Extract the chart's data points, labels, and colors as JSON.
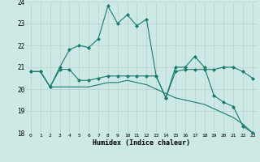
{
  "xlabel": "Humidex (Indice chaleur)",
  "x": [
    0,
    1,
    2,
    3,
    4,
    5,
    6,
    7,
    8,
    9,
    10,
    11,
    12,
    13,
    14,
    15,
    16,
    17,
    18,
    19,
    20,
    21,
    22,
    23
  ],
  "line1": [
    20.8,
    20.8,
    20.1,
    21.0,
    21.8,
    22.0,
    21.9,
    22.3,
    23.8,
    23.0,
    23.4,
    22.9,
    23.2,
    20.6,
    19.6,
    21.0,
    21.0,
    21.5,
    21.0,
    19.7,
    19.4,
    19.2,
    18.3,
    18.0
  ],
  "line2": [
    20.8,
    20.8,
    20.1,
    20.1,
    20.1,
    20.1,
    20.1,
    20.2,
    20.3,
    20.3,
    20.4,
    20.3,
    20.2,
    20.0,
    19.8,
    19.6,
    19.5,
    19.4,
    19.3,
    19.1,
    18.9,
    18.7,
    18.4,
    18.0
  ],
  "line3": [
    20.8,
    20.8,
    20.1,
    20.9,
    20.9,
    20.4,
    20.4,
    20.5,
    20.6,
    20.6,
    20.6,
    20.6,
    20.6,
    20.6,
    19.6,
    20.8,
    20.9,
    20.9,
    20.9,
    20.9,
    21.0,
    21.0,
    20.8,
    20.5
  ],
  "line_color": "#1a7a6e",
  "bg_color": "#cce9e5",
  "grid_color": "#b8d8d4",
  "ylim": [
    18,
    24
  ],
  "yticks": [
    18,
    19,
    20,
    21,
    22,
    23,
    24
  ],
  "xticks": [
    0,
    1,
    2,
    3,
    4,
    5,
    6,
    7,
    8,
    9,
    10,
    11,
    12,
    13,
    14,
    15,
    16,
    17,
    18,
    19,
    20,
    21,
    22,
    23
  ]
}
